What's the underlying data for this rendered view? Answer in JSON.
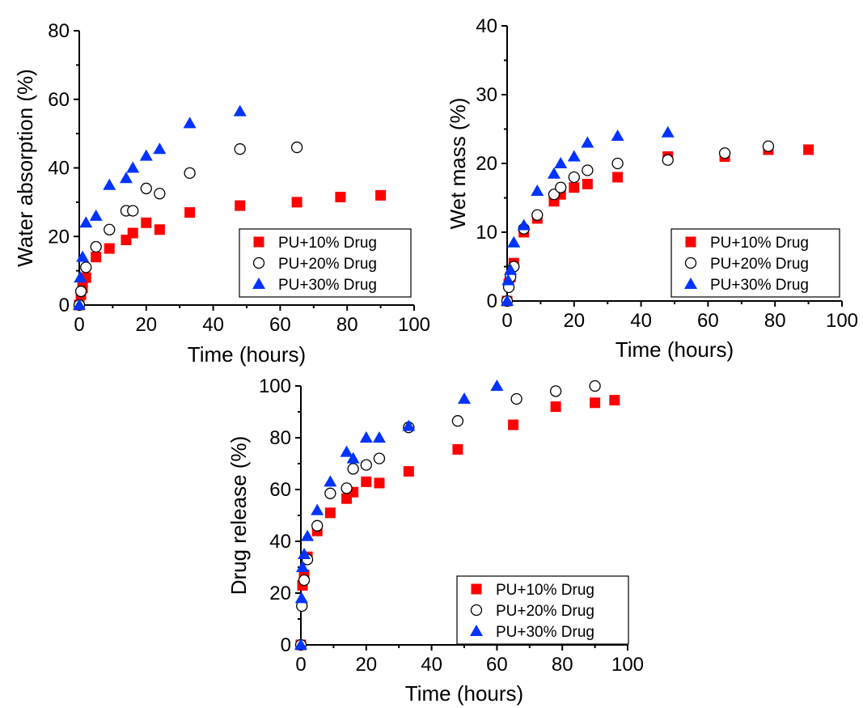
{
  "figure": "three-panel scatter",
  "chart_data": [
    {
      "type": "scatter",
      "xlabel": "Time (hours)",
      "ylabel": "Water absorption (%)",
      "xlim": [
        0,
        100
      ],
      "ylim": [
        0,
        80
      ],
      "xticks": [
        0,
        20,
        40,
        60,
        80,
        100
      ],
      "yticks": [
        0,
        20,
        40,
        60,
        80
      ],
      "legend_position": "bottom-right",
      "series": [
        {
          "name": "PU+10% Drug",
          "marker": "square",
          "color": "#ff0000",
          "x": [
            0,
            0.5,
            1,
            2,
            5,
            9,
            14,
            16,
            20,
            24,
            33,
            48,
            65,
            78,
            90
          ],
          "y": [
            0,
            3,
            5,
            8,
            14,
            16.5,
            19,
            21,
            24,
            22,
            27,
            29,
            30,
            31.5,
            32
          ]
        },
        {
          "name": "PU+20% Drug",
          "marker": "circle-open",
          "color": "#000000",
          "x": [
            0,
            0.5,
            2,
            5,
            9,
            14,
            16,
            20,
            24,
            33,
            48,
            65
          ],
          "y": [
            0,
            4,
            11,
            17,
            22,
            27.5,
            27.5,
            34,
            32.5,
            38.5,
            45.5,
            46
          ]
        },
        {
          "name": "PU+30% Drug",
          "marker": "triangle",
          "color": "#0033ff",
          "x": [
            0,
            0.3,
            1,
            2,
            5,
            9,
            14,
            16,
            20,
            24,
            33,
            48
          ],
          "y": [
            0,
            8,
            14,
            24,
            26,
            35,
            37,
            40,
            43.5,
            45.5,
            53,
            56.5
          ]
        }
      ]
    },
    {
      "type": "scatter",
      "xlabel": "Time (hours)",
      "ylabel": "Wet mass (%)",
      "xlim": [
        0,
        100
      ],
      "ylim": [
        0,
        40
      ],
      "xticks": [
        0,
        20,
        40,
        60,
        80,
        100
      ],
      "yticks": [
        0,
        10,
        20,
        30,
        40
      ],
      "legend_position": "bottom-right",
      "series": [
        {
          "name": "PU+10% Drug",
          "marker": "square",
          "color": "#ff0000",
          "x": [
            0,
            0.5,
            1,
            2,
            5,
            9,
            14,
            16,
            20,
            24,
            33,
            48,
            65,
            78,
            90
          ],
          "y": [
            0,
            2.5,
            3.5,
            5.5,
            10,
            12,
            14.5,
            15.5,
            16.5,
            17,
            18,
            21,
            21,
            22,
            22
          ]
        },
        {
          "name": "PU+20% Drug",
          "marker": "circle-open",
          "color": "#000000",
          "x": [
            0,
            0.5,
            1,
            2,
            5,
            9,
            14,
            16,
            20,
            24,
            33,
            48,
            65,
            78
          ],
          "y": [
            0,
            2,
            3.5,
            5,
            10.5,
            12.5,
            15.5,
            16.5,
            18,
            19,
            20,
            20.5,
            21.5,
            22.5
          ]
        },
        {
          "name": "PU+30% Drug",
          "marker": "triangle",
          "color": "#0033ff",
          "x": [
            0,
            0.3,
            1,
            2,
            5,
            9,
            14,
            16,
            20,
            24,
            33,
            48
          ],
          "y": [
            0,
            3,
            4.5,
            8.5,
            11,
            16,
            18.5,
            20,
            21,
            23,
            24,
            24.5
          ]
        }
      ]
    },
    {
      "type": "scatter",
      "xlabel": "Time (hours)",
      "ylabel": "Drug release (%)",
      "xlim": [
        0,
        100
      ],
      "ylim": [
        0,
        100
      ],
      "xticks": [
        0,
        20,
        40,
        60,
        80,
        100
      ],
      "yticks": [
        0,
        20,
        40,
        60,
        80,
        100
      ],
      "legend_position": "bottom-right",
      "series": [
        {
          "name": "PU+10% Drug",
          "marker": "square",
          "color": "#ff0000",
          "x": [
            0,
            0.5,
            1,
            2,
            5,
            9,
            14,
            16,
            20,
            24,
            33,
            48,
            65,
            78,
            90,
            96
          ],
          "y": [
            0,
            23,
            27,
            34,
            44,
            51,
            56.5,
            59,
            63,
            62.5,
            67,
            75.5,
            85,
            92,
            93.5,
            94.5
          ]
        },
        {
          "name": "PU+20% Drug",
          "marker": "circle-open",
          "color": "#000000",
          "x": [
            0,
            0.3,
            1,
            2,
            5,
            9,
            14,
            16,
            20,
            24,
            33,
            48,
            66,
            78,
            90
          ],
          "y": [
            0,
            15,
            25,
            33,
            46,
            58.5,
            60.5,
            68,
            69.5,
            72,
            84,
            86.5,
            95,
            98,
            100
          ]
        },
        {
          "name": "PU+30% Drug",
          "marker": "triangle",
          "color": "#0033ff",
          "x": [
            0,
            0.2,
            0.5,
            1,
            2,
            5,
            9,
            14,
            16,
            20,
            24,
            33,
            50,
            60
          ],
          "y": [
            0,
            18,
            30,
            35,
            42,
            52,
            63,
            74.5,
            72,
            80,
            80,
            84.5,
            95,
            100
          ]
        }
      ]
    }
  ]
}
